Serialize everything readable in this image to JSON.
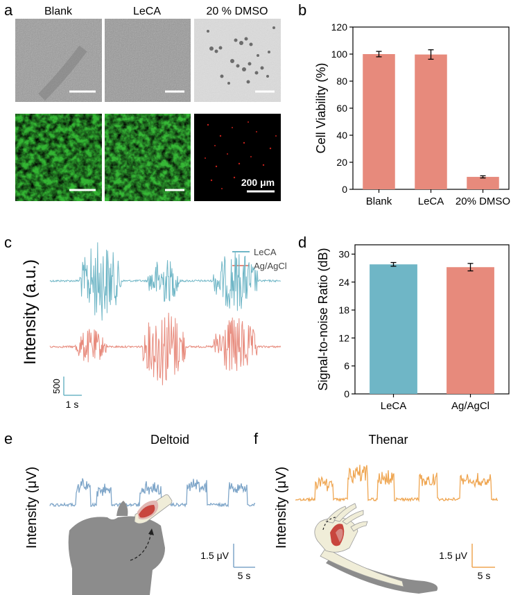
{
  "figure": {
    "panel_labels": [
      "a",
      "b",
      "c",
      "d",
      "e",
      "f"
    ],
    "colors": {
      "bar_red": "#E78A7C",
      "bar_teal": "#6FB6C6",
      "trace_blue": "#7FA6C9",
      "trace_orange": "#EFA652",
      "fluor_green": "#33B533",
      "grey_tissue": "#8C8C8C"
    }
  },
  "panel_a": {
    "columns": [
      "Blank",
      "LeCA",
      "20 % DMSO"
    ],
    "scalebar_label": "200 μm"
  },
  "panel_c": {
    "legend": [
      "LeCA",
      "Ag/AgCl"
    ],
    "ylabel": "Intensity (a.u.)",
    "scalebar_y_label": "500",
    "scalebar_x_label": "1 s"
  },
  "panel_e": {
    "title": "Deltoid",
    "ylabel": "Intensity (μV)",
    "scalebar_y_label": "1.5 μV",
    "scalebar_x_label": "5 s"
  },
  "panel_f": {
    "title": "Thenar",
    "ylabel": "Intensity (μV)",
    "scalebar_y_label": "1.5 μV",
    "scalebar_x_label": "5 s"
  },
  "chart_data": [
    {
      "id": "b",
      "type": "bar",
      "categories": [
        "Blank",
        "LeCA",
        "20% DMSO"
      ],
      "values": [
        100,
        99.7,
        9.2
      ],
      "errors": [
        2,
        3.5,
        0.8
      ],
      "ylabel": "Cell Viability (%)",
      "ylim": [
        0,
        120
      ],
      "yticks": [
        0,
        20,
        40,
        60,
        80,
        100,
        120
      ],
      "color": "#E78A7C"
    },
    {
      "id": "d",
      "type": "bar",
      "categories": [
        "LeCA",
        "Ag/AgCl"
      ],
      "values": [
        27.8,
        27.2
      ],
      "errors": [
        0.4,
        0.8
      ],
      "colors": [
        "#6FB6C6",
        "#E78A7C"
      ],
      "ylabel": "Signal-to-noise Ratio (dB)",
      "ylim": [
        0,
        32
      ],
      "yticks": [
        0,
        6,
        12,
        18,
        24,
        30
      ]
    }
  ]
}
